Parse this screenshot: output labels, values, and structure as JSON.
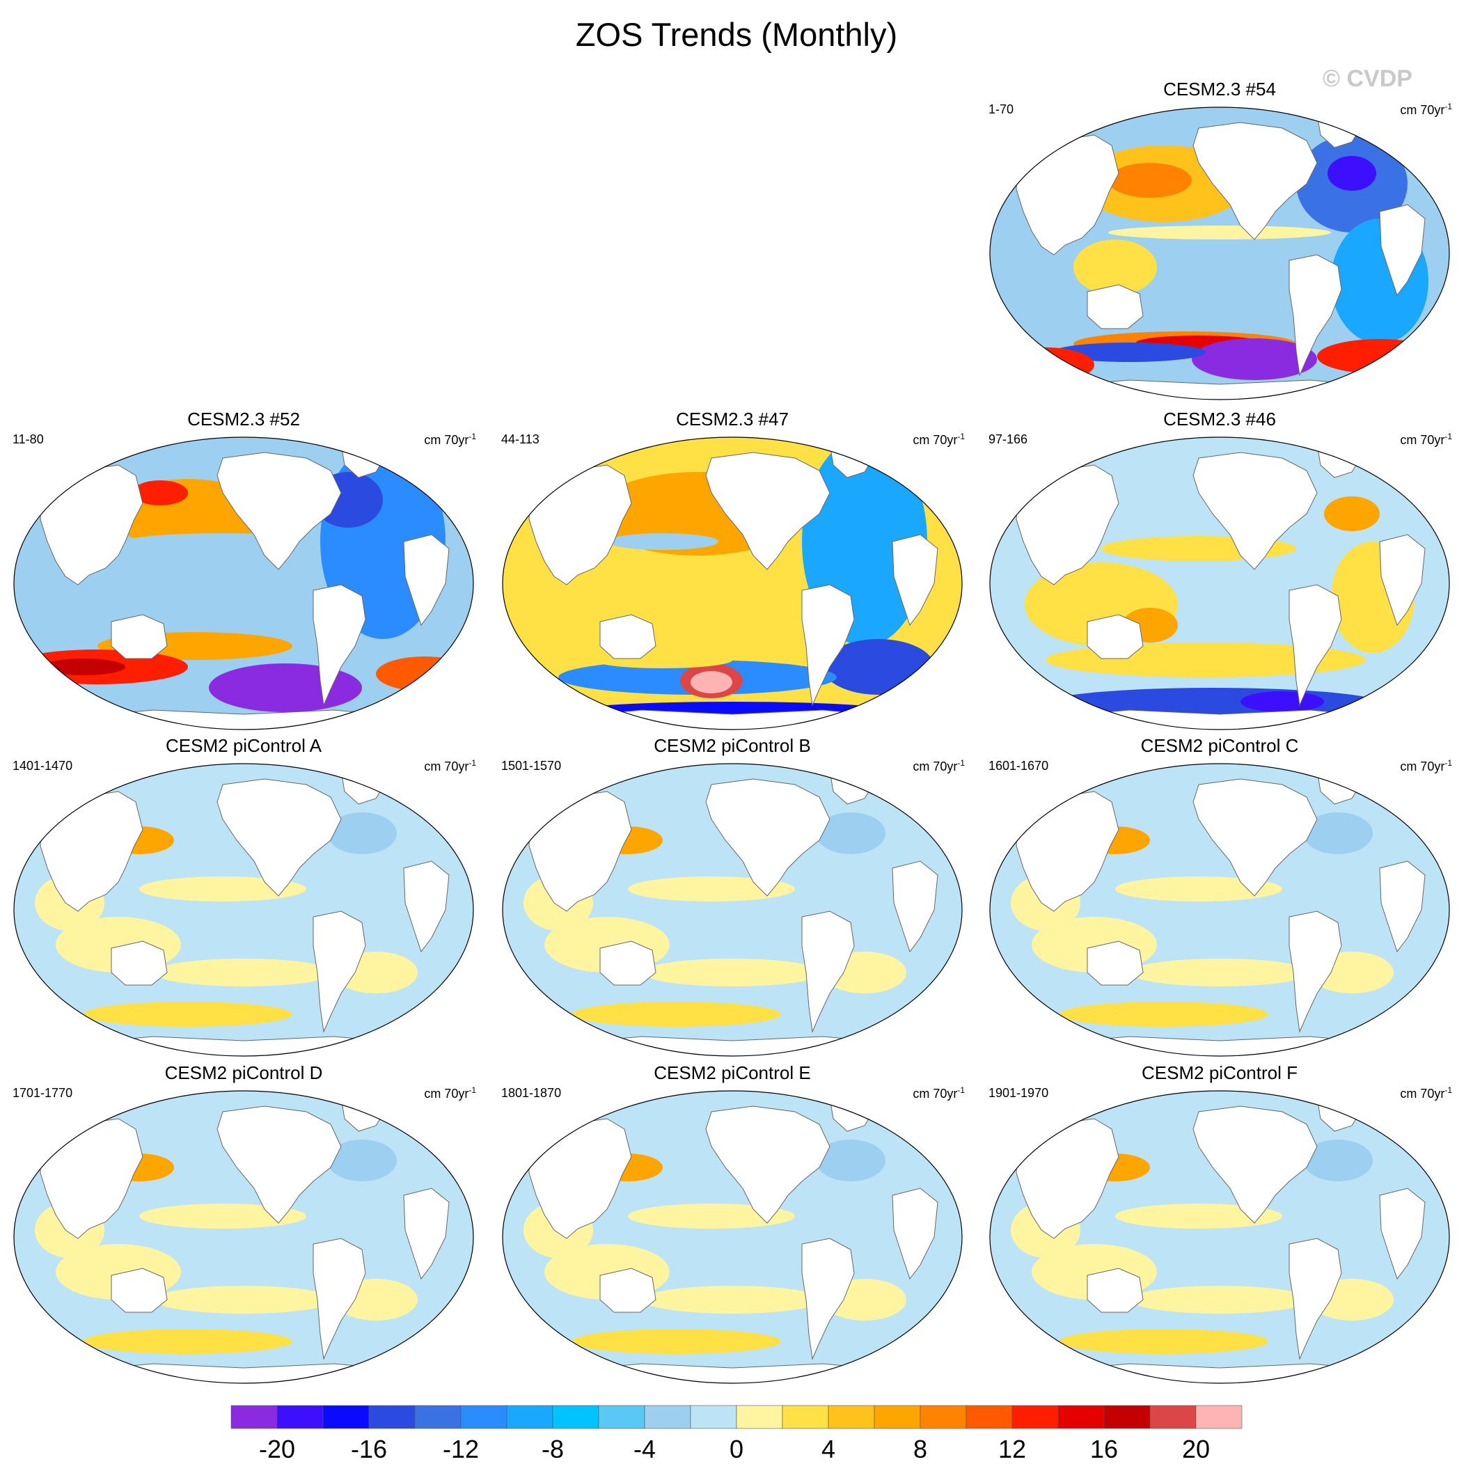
{
  "figure": {
    "title": "ZOS Trends (Monthly)",
    "watermark": "© CVDP",
    "units_prefix": "cm 70yr",
    "units_exponent": "-1"
  },
  "panels": [
    {
      "title": "CESM2.3 #54",
      "period": "1-70",
      "pattern": "model1"
    },
    {
      "title": "CESM2.3 #52",
      "period": "11-80",
      "pattern": "model2"
    },
    {
      "title": "CESM2.3 #47",
      "period": "44-113",
      "pattern": "model3"
    },
    {
      "title": "CESM2.3 #46",
      "period": "97-166",
      "pattern": "model4"
    },
    {
      "title": "CESM2 piControl A",
      "period": "1401-1470",
      "pattern": "ctrl"
    },
    {
      "title": "CESM2 piControl B",
      "period": "1501-1570",
      "pattern": "ctrl"
    },
    {
      "title": "CESM2 piControl C",
      "period": "1601-1670",
      "pattern": "ctrl"
    },
    {
      "title": "CESM2 piControl D",
      "period": "1701-1770",
      "pattern": "ctrl"
    },
    {
      "title": "CESM2 piControl E",
      "period": "1801-1870",
      "pattern": "ctrl"
    },
    {
      "title": "CESM2 piControl F",
      "period": "1901-1970",
      "pattern": "ctrl"
    }
  ],
  "colorbar": {
    "colors": [
      "#8a2be2",
      "#3c0fff",
      "#0a0aff",
      "#2a4ae0",
      "#3a72e6",
      "#2a8cff",
      "#1aa8ff",
      "#00c3ff",
      "#5ac8f5",
      "#9ccff0",
      "#bde3f7",
      "#fff5a0",
      "#ffe045",
      "#ffc21a",
      "#ffa500",
      "#ff8200",
      "#ff5a00",
      "#ff1e00",
      "#e60000",
      "#c40000",
      "#dc4646",
      "#ffb4b4"
    ],
    "tick_labels": [
      "-20",
      "-16",
      "-12",
      "-8",
      "-4",
      "0",
      "4",
      "8",
      "12",
      "16",
      "20"
    ]
  },
  "chart_data": {
    "type": "map",
    "title": "ZOS Trends (Monthly)",
    "variable": "ZOS",
    "units": "cm 70yr-1",
    "contour_levels": [
      -22,
      -20,
      -18,
      -16,
      -14,
      -12,
      -10,
      -8,
      -6,
      -4,
      -2,
      0,
      2,
      4,
      6,
      8,
      10,
      12,
      14,
      16,
      18,
      20,
      22
    ],
    "projection": "Robinson-like global, Pacific centered",
    "panels": [
      {
        "name": "CESM2.3 #54",
        "years": "1-70",
        "summary": "strong negative Southern Ocean sector and North Atlantic, positive North Pacific and Antarctic Circumpolar band"
      },
      {
        "name": "CESM2.3 #52",
        "years": "11-80",
        "summary": "strong negative Atlantic and Antarctic margin, positive North Pacific and Southern Ocean band"
      },
      {
        "name": "CESM2.3 #47",
        "years": "44-113",
        "summary": "positive Pacific and Indian Ocean, negative Atlantic and Southern Ocean, positive maximum near 20 south of New Zealand"
      },
      {
        "name": "CESM2.3 #46",
        "years": "97-166",
        "summary": "weak mixed pattern, negative Antarctic margin"
      },
      {
        "name": "CESM2 piControl A",
        "years": "1401-1470",
        "summary": "weak trends within -4 to 4"
      },
      {
        "name": "CESM2 piControl B",
        "years": "1501-1570",
        "summary": "weak trends within -4 to 4"
      },
      {
        "name": "CESM2 piControl C",
        "years": "1601-1670",
        "summary": "weak trends within -4 to 4"
      },
      {
        "name": "CESM2 piControl D",
        "years": "1701-1770",
        "summary": "weak trends within -4 to 4"
      },
      {
        "name": "CESM2 piControl E",
        "years": "1801-1870",
        "summary": "weak trends within -4 to 4"
      },
      {
        "name": "CESM2 piControl F",
        "years": "1901-1970",
        "summary": "weak trends within -4 to 4"
      }
    ]
  }
}
